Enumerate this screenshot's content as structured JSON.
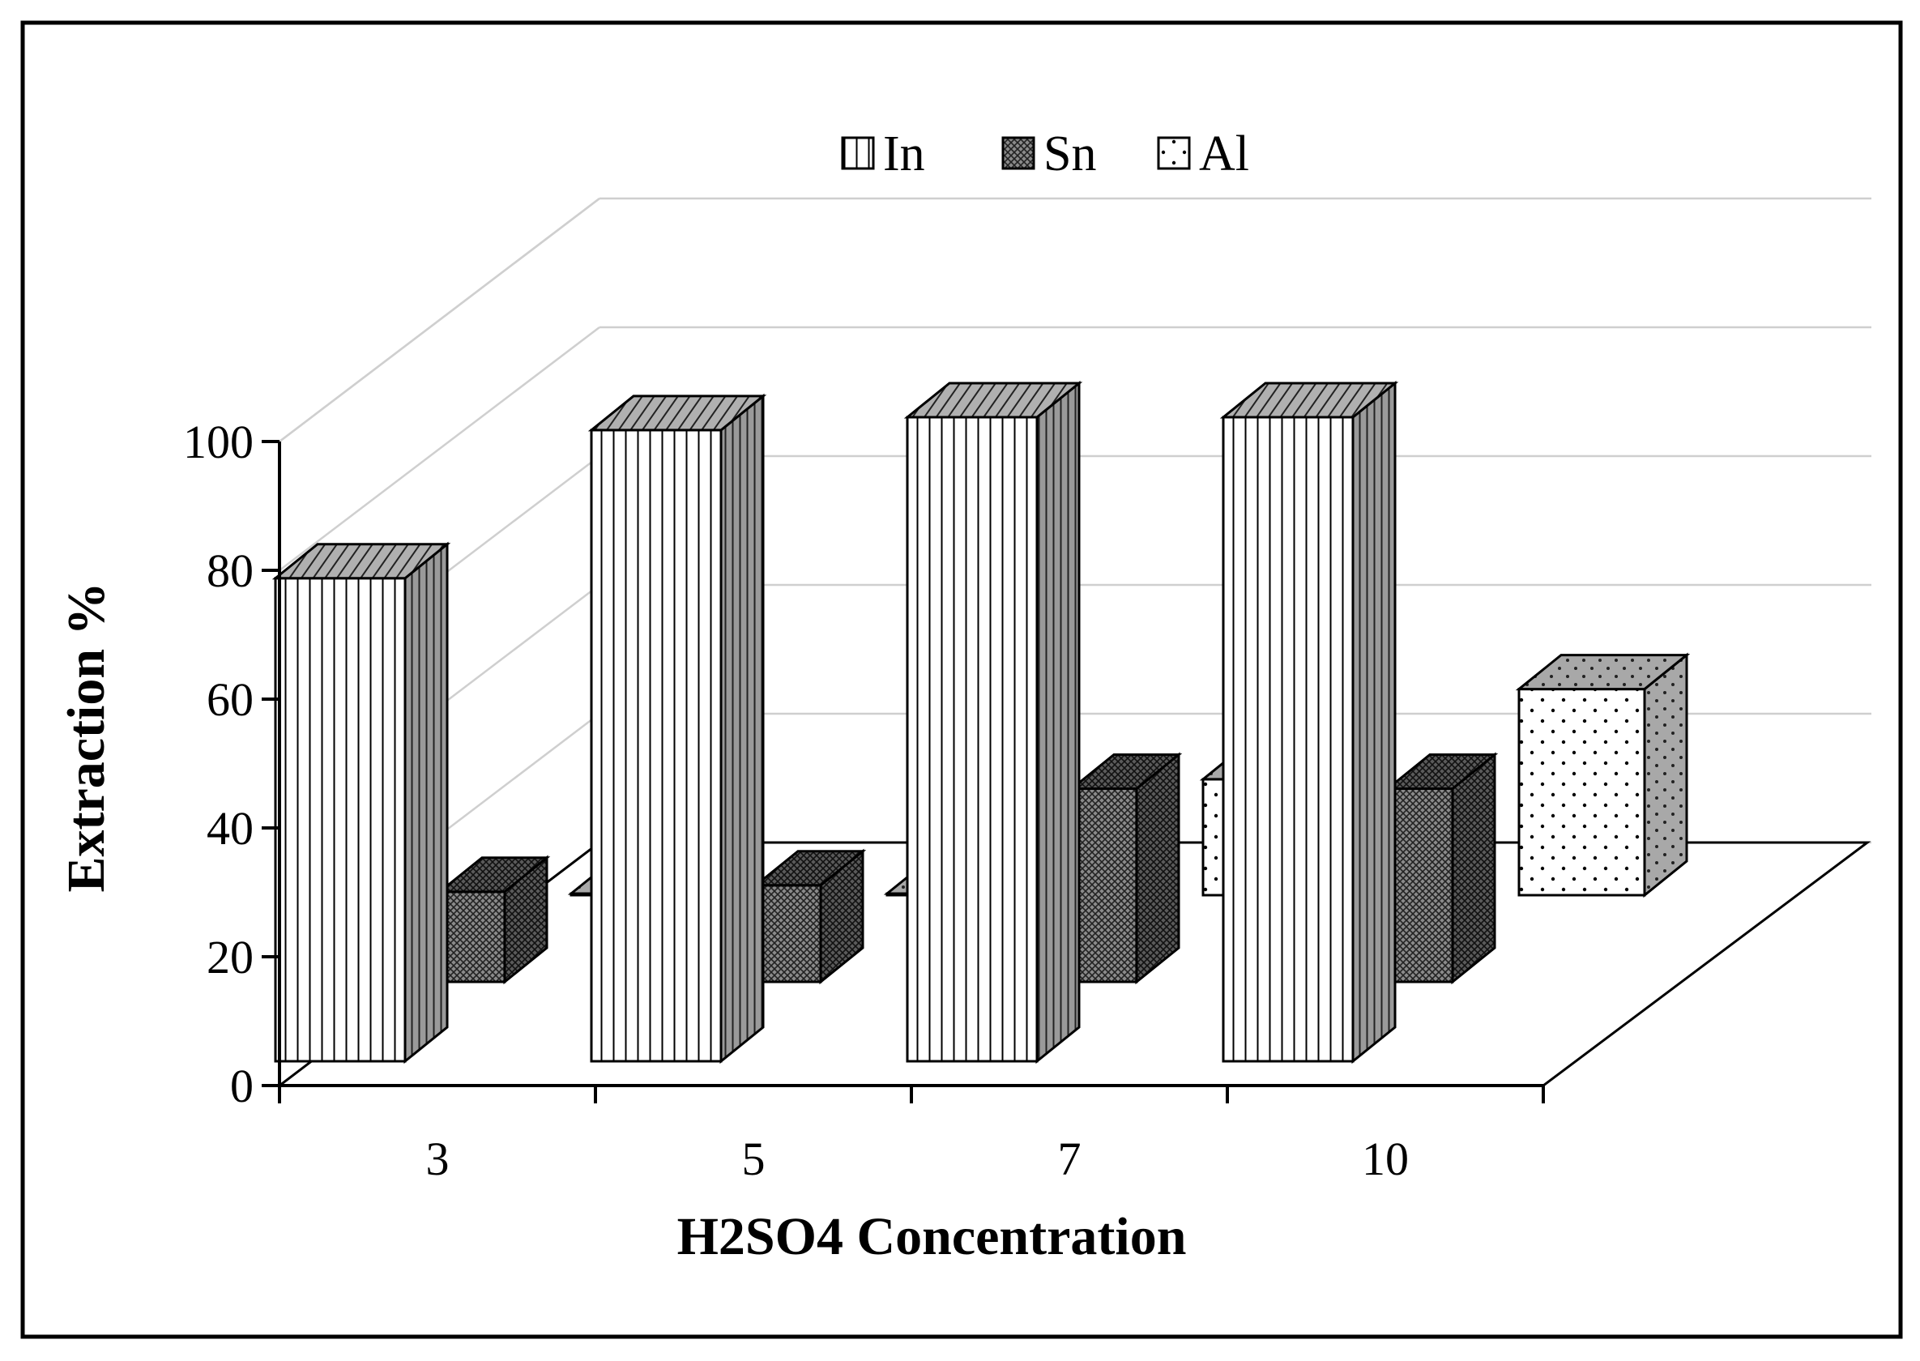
{
  "chart_data": {
    "type": "bar",
    "style": "3d-clustered-depth",
    "title": "",
    "xlabel": "H2SO4 Concentration",
    "ylabel": "Extraction %",
    "categories": [
      "3",
      "5",
      "7",
      "10"
    ],
    "ylim": [
      0,
      100
    ],
    "yticks": [
      0,
      20,
      40,
      60,
      80,
      100
    ],
    "grid": true,
    "legend_position": "top-center",
    "series": [
      {
        "name": "In",
        "pattern": "vertical-stripes",
        "values": [
          75,
          98,
          100,
          100
        ]
      },
      {
        "name": "Sn",
        "pattern": "crosshatch",
        "values": [
          14,
          15,
          30,
          30
        ]
      },
      {
        "name": "Al",
        "pattern": "dots",
        "values": [
          0,
          0,
          18,
          32
        ]
      }
    ]
  },
  "colors": {
    "frame": "#000000",
    "bar_side": "#9a9a9a",
    "bar_top": "#b0b0b0",
    "grid": "#cfcfcf",
    "sn_face": "#8a8a8a",
    "al_side": "#a8a8a8"
  }
}
